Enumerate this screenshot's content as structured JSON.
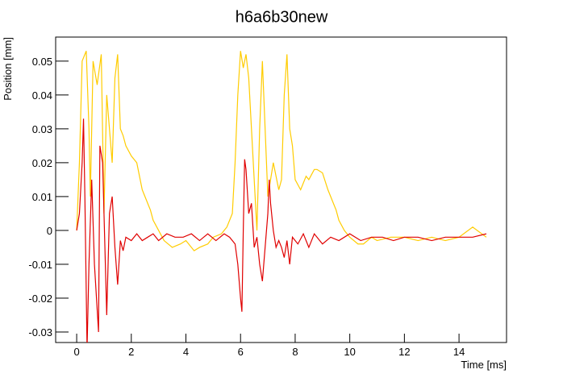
{
  "chart_data": {
    "type": "line",
    "title": "h6a6b30new",
    "x_label": "Time [ms]",
    "y_label": "Position [mm]",
    "xlim": [
      -0.77,
      15.74
    ],
    "ylim": [
      -0.0331,
      0.0571
    ],
    "xticks": [
      0,
      2,
      4,
      6,
      8,
      10,
      12,
      14
    ],
    "yticks": [
      -0.03,
      -0.02,
      -0.01,
      0,
      0.01,
      0.02,
      0.03,
      0.04,
      0.05
    ],
    "series": [
      {
        "name": "yellow",
        "color": "#ffcc00",
        "x": [
          0,
          0.1,
          0.2,
          0.35,
          0.45,
          0.5,
          0.6,
          0.75,
          0.9,
          1.0,
          1.1,
          1.2,
          1.3,
          1.4,
          1.5,
          1.6,
          1.7,
          1.8,
          2.0,
          2.2,
          2.4,
          2.5,
          2.7,
          2.8,
          3.0,
          3.2,
          3.5,
          3.8,
          4.0,
          4.3,
          4.5,
          4.8,
          5.0,
          5.3,
          5.5,
          5.7,
          5.8,
          5.9,
          6.0,
          6.1,
          6.2,
          6.3,
          6.4,
          6.5,
          6.6,
          6.7,
          6.8,
          6.9,
          7.0,
          7.1,
          7.2,
          7.4,
          7.5,
          7.6,
          7.7,
          7.8,
          7.9,
          8.0,
          8.2,
          8.4,
          8.5,
          8.7,
          8.8,
          9.0,
          9.2,
          9.3,
          9.5,
          9.6,
          9.8,
          10.0,
          10.3,
          10.5,
          10.8,
          11.0,
          11.5,
          12.0,
          12.5,
          13.0,
          13.5,
          14.0,
          14.5,
          15.0
        ],
        "values": [
          0,
          0.02,
          0.05,
          0.053,
          0.03,
          0.01,
          0.05,
          0.043,
          0.052,
          0.005,
          0.04,
          0.03,
          0.02,
          0.045,
          0.052,
          0.03,
          0.028,
          0.025,
          0.022,
          0.02,
          0.012,
          0.01,
          0.006,
          0.003,
          0.0,
          -0.003,
          -0.005,
          -0.004,
          -0.003,
          -0.006,
          -0.005,
          -0.004,
          -0.002,
          -0.001,
          0.001,
          0.005,
          0.02,
          0.04,
          0.053,
          0.048,
          0.052,
          0.045,
          0.03,
          0.015,
          0.0,
          0.03,
          0.05,
          0.03,
          0.01,
          0.015,
          0.02,
          0.012,
          0.015,
          0.04,
          0.052,
          0.03,
          0.025,
          0.015,
          0.012,
          0.016,
          0.015,
          0.018,
          0.018,
          0.017,
          0.012,
          0.01,
          0.006,
          0.003,
          0.0,
          -0.002,
          -0.004,
          -0.004,
          -0.002,
          -0.003,
          -0.002,
          -0.002,
          -0.003,
          -0.002,
          -0.003,
          -0.002,
          0.001,
          -0.002
        ]
      },
      {
        "name": "red",
        "color": "#e00000",
        "x": [
          0,
          0.1,
          0.2,
          0.25,
          0.3,
          0.38,
          0.45,
          0.55,
          0.65,
          0.8,
          0.85,
          0.95,
          1.1,
          1.2,
          1.3,
          1.4,
          1.5,
          1.6,
          1.7,
          1.8,
          2.0,
          2.2,
          2.4,
          2.6,
          2.8,
          3.0,
          3.3,
          3.6,
          3.9,
          4.2,
          4.5,
          4.8,
          5.1,
          5.4,
          5.6,
          5.8,
          5.9,
          6.0,
          6.05,
          6.1,
          6.15,
          6.2,
          6.3,
          6.4,
          6.5,
          6.6,
          6.7,
          6.8,
          6.9,
          7.0,
          7.05,
          7.1,
          7.2,
          7.3,
          7.4,
          7.5,
          7.6,
          7.7,
          7.8,
          7.9,
          8.1,
          8.3,
          8.5,
          8.7,
          9.0,
          9.3,
          9.6,
          10.0,
          10.4,
          10.8,
          11.2,
          11.6,
          12.0,
          12.5,
          13.0,
          13.5,
          14.0,
          14.5,
          15.0
        ],
        "values": [
          0,
          0.005,
          0.02,
          0.033,
          0.01,
          -0.035,
          -0.01,
          0.015,
          -0.01,
          -0.03,
          0.025,
          0.02,
          -0.025,
          0.005,
          0.01,
          -0.005,
          -0.016,
          -0.003,
          -0.006,
          -0.002,
          -0.003,
          -0.001,
          -0.003,
          -0.002,
          -0.001,
          -0.003,
          -0.001,
          -0.002,
          -0.002,
          -0.001,
          -0.003,
          -0.001,
          -0.003,
          -0.001,
          -0.002,
          -0.004,
          -0.01,
          -0.02,
          -0.024,
          0.0,
          0.021,
          0.018,
          0.005,
          0.008,
          -0.005,
          -0.002,
          -0.01,
          -0.015,
          -0.005,
          0.005,
          0.015,
          0.008,
          0.0,
          -0.005,
          -0.003,
          -0.005,
          -0.008,
          -0.003,
          -0.01,
          -0.002,
          -0.004,
          -0.001,
          -0.005,
          -0.001,
          -0.004,
          -0.002,
          -0.003,
          -0.001,
          -0.003,
          -0.002,
          -0.002,
          -0.003,
          -0.002,
          -0.002,
          -0.003,
          -0.002,
          -0.002,
          -0.002,
          -0.001
        ]
      }
    ]
  }
}
